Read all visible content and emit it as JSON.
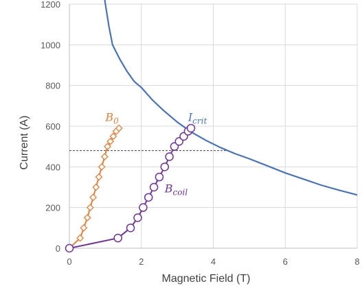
{
  "chart_data": {
    "type": "scatter",
    "xlabel": "Magnetic Field (T)",
    "ylabel": "Current (A)",
    "xlim": [
      0,
      8
    ],
    "ylim": [
      0,
      1200
    ],
    "x_ticks": [
      "0",
      "2",
      "4",
      "6",
      "8"
    ],
    "y_ticks": [
      "0",
      "200",
      "400",
      "600",
      "800",
      "1000",
      "1200"
    ],
    "grid": true,
    "annotations": [
      {
        "type": "hline_dashed",
        "y": 480,
        "x_range": [
          0,
          4.35
        ]
      }
    ],
    "series": [
      {
        "name": "I_crit",
        "label_main": "I",
        "label_sub": "crit",
        "color": "#4472C4",
        "style": "line",
        "x": [
          0.97,
          1.0,
          1.1,
          1.2,
          1.4,
          1.6,
          1.8,
          2.0,
          2.3,
          2.6,
          3.0,
          3.4,
          3.8,
          4.2,
          4.6,
          5.0,
          5.5,
          6.0,
          6.5,
          7.0,
          7.5,
          8.0
        ],
        "y": [
          1240,
          1200,
          1090,
          1000,
          930,
          870,
          820,
          790,
          730,
          680,
          620,
          570,
          530,
          495,
          465,
          440,
          405,
          370,
          340,
          310,
          285,
          262
        ]
      },
      {
        "name": "B_0",
        "label_main": "B",
        "label_sub": "0",
        "color": "#ED7D31",
        "style": "line-diamond",
        "x": [
          0,
          0.3,
          0.4,
          0.5,
          0.58,
          0.66,
          0.74,
          0.82,
          0.9,
          0.98,
          1.06,
          1.14,
          1.22,
          1.3,
          1.38
        ],
        "y": [
          0,
          50,
          100,
          150,
          200,
          250,
          300,
          350,
          400,
          450,
          500,
          525,
          550,
          575,
          590
        ]
      },
      {
        "name": "B_coil",
        "label_main": "B",
        "label_sub": "coil",
        "color": "#7030A0",
        "style": "line-circle",
        "x": [
          0,
          1.35,
          1.7,
          1.9,
          2.05,
          2.2,
          2.35,
          2.5,
          2.65,
          2.78,
          2.92,
          3.05,
          3.18,
          3.3,
          3.38
        ],
        "y": [
          0,
          50,
          100,
          150,
          200,
          250,
          300,
          350,
          400,
          450,
          500,
          525,
          550,
          575,
          590
        ]
      }
    ]
  }
}
